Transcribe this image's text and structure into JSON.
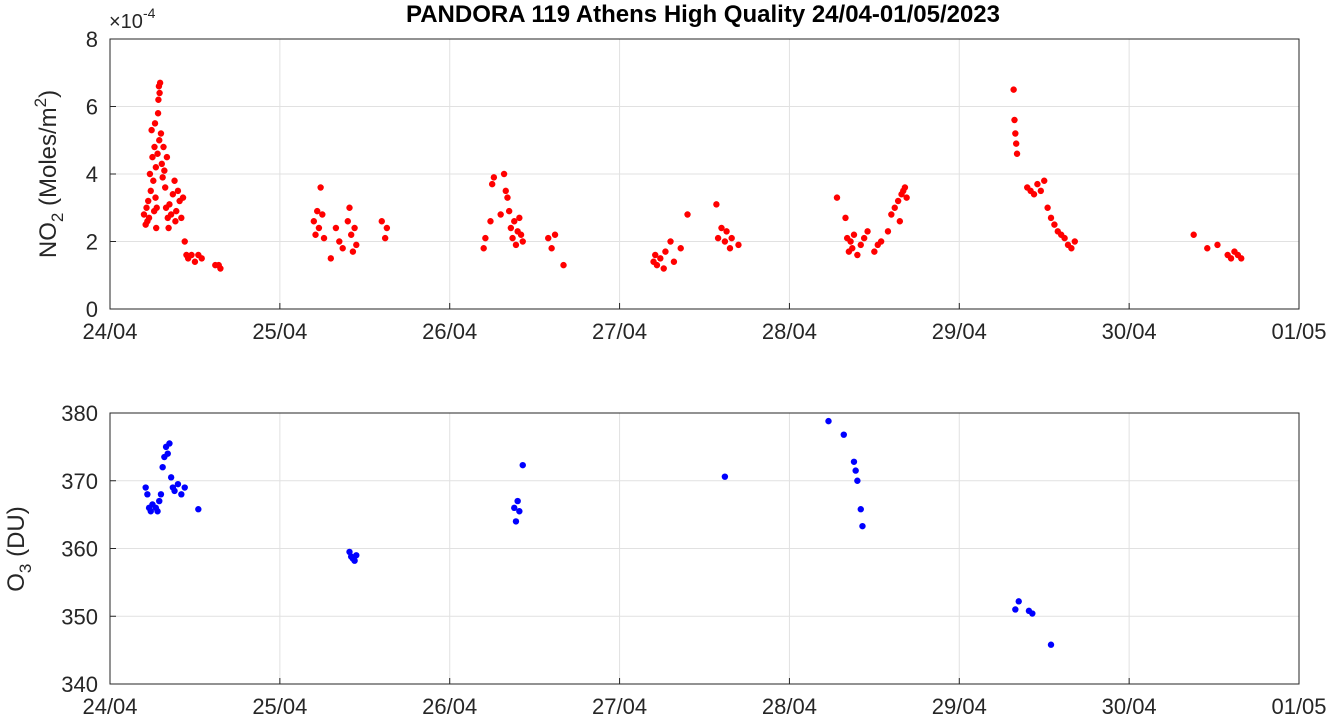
{
  "chart_data": [
    {
      "type": "scatter",
      "title": "PANDORA 119 Athens High Quality 24/04-01/05/2023",
      "ylabel": "NO2 (Moles/m2)",
      "ylabel_parts": {
        "main": "NO",
        "sub": "2",
        "rest": " (Moles/m",
        "sup": "2",
        "end": ")"
      },
      "y_exponent_label": "×10",
      "y_exponent_value": "-4",
      "x_unit": "days after 24/04",
      "xlim": [
        0,
        7
      ],
      "xticks": [
        "24/04",
        "25/04",
        "26/04",
        "27/04",
        "28/04",
        "29/04",
        "30/04",
        "01/05"
      ],
      "ylim": [
        0,
        8
      ],
      "yticks": [
        "0",
        "2",
        "4",
        "6",
        "8"
      ],
      "grid": true,
      "color": "#ff0000",
      "series": [
        {
          "points": [
            [
              0.2,
              2.8
            ],
            [
              0.21,
              2.5
            ],
            [
              0.215,
              3.0
            ],
            [
              0.22,
              2.6
            ],
            [
              0.225,
              3.2
            ],
            [
              0.23,
              2.7
            ],
            [
              0.235,
              4.0
            ],
            [
              0.24,
              3.5
            ],
            [
              0.245,
              5.3
            ],
            [
              0.25,
              4.5
            ],
            [
              0.255,
              3.8
            ],
            [
              0.26,
              2.9
            ],
            [
              0.262,
              4.8
            ],
            [
              0.265,
              5.5
            ],
            [
              0.268,
              3.3
            ],
            [
              0.27,
              4.2
            ],
            [
              0.272,
              2.4
            ],
            [
              0.275,
              3.0
            ],
            [
              0.28,
              4.6
            ],
            [
              0.283,
              5.8
            ],
            [
              0.285,
              6.2
            ],
            [
              0.288,
              6.6
            ],
            [
              0.29,
              5.0
            ],
            [
              0.292,
              6.4
            ],
            [
              0.295,
              6.7
            ],
            [
              0.3,
              5.2
            ],
            [
              0.305,
              4.3
            ],
            [
              0.31,
              3.9
            ],
            [
              0.315,
              4.8
            ],
            [
              0.32,
              4.1
            ],
            [
              0.325,
              3.6
            ],
            [
              0.33,
              3.0
            ],
            [
              0.335,
              4.5
            ],
            [
              0.34,
              2.7
            ],
            [
              0.345,
              2.4
            ],
            [
              0.35,
              3.1
            ],
            [
              0.36,
              2.8
            ],
            [
              0.37,
              3.4
            ],
            [
              0.38,
              3.8
            ],
            [
              0.385,
              2.6
            ],
            [
              0.39,
              2.9
            ],
            [
              0.4,
              3.5
            ],
            [
              0.41,
              3.2
            ],
            [
              0.42,
              2.7
            ],
            [
              0.43,
              3.3
            ],
            [
              0.44,
              2.0
            ],
            [
              0.45,
              1.6
            ],
            [
              0.46,
              1.5
            ],
            [
              0.48,
              1.6
            ],
            [
              0.5,
              1.4
            ],
            [
              0.52,
              1.6
            ],
            [
              0.54,
              1.5
            ],
            [
              0.62,
              1.3
            ],
            [
              0.64,
              1.3
            ],
            [
              0.65,
              1.2
            ]
          ]
        },
        {
          "points": [
            [
              1.2,
              2.6
            ],
            [
              1.21,
              2.2
            ],
            [
              1.22,
              2.9
            ],
            [
              1.23,
              2.4
            ],
            [
              1.24,
              3.6
            ],
            [
              1.25,
              2.8
            ],
            [
              1.26,
              2.1
            ],
            [
              1.3,
              1.5
            ],
            [
              1.33,
              2.4
            ],
            [
              1.35,
              2.0
            ],
            [
              1.37,
              1.8
            ],
            [
              1.4,
              2.6
            ],
            [
              1.41,
              3.0
            ],
            [
              1.42,
              2.2
            ],
            [
              1.43,
              1.7
            ],
            [
              1.44,
              2.4
            ],
            [
              1.45,
              1.9
            ],
            [
              1.6,
              2.6
            ],
            [
              1.62,
              2.1
            ],
            [
              1.63,
              2.4
            ]
          ]
        },
        {
          "points": [
            [
              2.2,
              1.8
            ],
            [
              2.21,
              2.1
            ],
            [
              2.24,
              2.6
            ],
            [
              2.25,
              3.7
            ],
            [
              2.26,
              3.9
            ],
            [
              2.3,
              2.8
            ],
            [
              2.32,
              4.0
            ],
            [
              2.33,
              3.5
            ],
            [
              2.34,
              3.3
            ],
            [
              2.35,
              2.9
            ],
            [
              2.36,
              2.4
            ],
            [
              2.37,
              2.1
            ],
            [
              2.38,
              2.6
            ],
            [
              2.39,
              1.9
            ],
            [
              2.4,
              2.3
            ],
            [
              2.41,
              2.7
            ],
            [
              2.42,
              2.2
            ],
            [
              2.43,
              2.0
            ],
            [
              2.58,
              2.1
            ],
            [
              2.6,
              1.8
            ],
            [
              2.62,
              2.2
            ],
            [
              2.67,
              1.3
            ]
          ]
        },
        {
          "points": [
            [
              3.2,
              1.4
            ],
            [
              3.21,
              1.6
            ],
            [
              3.22,
              1.3
            ],
            [
              3.24,
              1.5
            ],
            [
              3.26,
              1.2
            ],
            [
              3.27,
              1.7
            ],
            [
              3.3,
              2.0
            ],
            [
              3.32,
              1.4
            ],
            [
              3.36,
              1.8
            ],
            [
              3.4,
              2.8
            ],
            [
              3.57,
              3.1
            ],
            [
              3.58,
              2.1
            ],
            [
              3.6,
              2.4
            ],
            [
              3.62,
              2.0
            ],
            [
              3.63,
              2.3
            ],
            [
              3.65,
              1.8
            ],
            [
              3.66,
              2.1
            ],
            [
              3.7,
              1.9
            ]
          ]
        },
        {
          "points": [
            [
              4.28,
              3.3
            ],
            [
              4.33,
              2.7
            ],
            [
              4.34,
              2.1
            ],
            [
              4.35,
              1.7
            ],
            [
              4.36,
              2.0
            ],
            [
              4.37,
              1.8
            ],
            [
              4.38,
              2.2
            ],
            [
              4.4,
              1.6
            ],
            [
              4.42,
              1.9
            ],
            [
              4.44,
              2.1
            ],
            [
              4.46,
              2.3
            ],
            [
              4.5,
              1.7
            ],
            [
              4.52,
              1.9
            ],
            [
              4.54,
              2.0
            ],
            [
              4.58,
              2.3
            ],
            [
              4.6,
              2.8
            ],
            [
              4.62,
              3.0
            ],
            [
              4.64,
              3.2
            ],
            [
              4.65,
              2.6
            ],
            [
              4.66,
              3.4
            ],
            [
              4.67,
              3.5
            ],
            [
              4.68,
              3.6
            ],
            [
              4.69,
              3.3
            ]
          ]
        },
        {
          "points": [
            [
              5.32,
              6.5
            ],
            [
              5.325,
              5.6
            ],
            [
              5.33,
              5.2
            ],
            [
              5.335,
              4.9
            ],
            [
              5.34,
              4.6
            ],
            [
              5.4,
              3.6
            ],
            [
              5.42,
              3.5
            ],
            [
              5.44,
              3.4
            ],
            [
              5.46,
              3.7
            ],
            [
              5.48,
              3.5
            ],
            [
              5.5,
              3.8
            ],
            [
              5.52,
              3.0
            ],
            [
              5.54,
              2.7
            ],
            [
              5.56,
              2.5
            ],
            [
              5.58,
              2.3
            ],
            [
              5.6,
              2.2
            ],
            [
              5.62,
              2.1
            ],
            [
              5.64,
              1.9
            ],
            [
              5.66,
              1.8
            ],
            [
              5.68,
              2.0
            ]
          ]
        },
        {
          "points": [
            [
              6.38,
              2.2
            ],
            [
              6.46,
              1.8
            ],
            [
              6.52,
              1.9
            ],
            [
              6.58,
              1.6
            ],
            [
              6.6,
              1.5
            ],
            [
              6.62,
              1.7
            ],
            [
              6.64,
              1.6
            ],
            [
              6.66,
              1.5
            ]
          ]
        }
      ]
    },
    {
      "type": "scatter",
      "ylabel": "O3 (DU)",
      "ylabel_parts": {
        "main": "O",
        "sub": "3",
        "rest": " (DU)"
      },
      "x_unit": "days after 24/04",
      "xlim": [
        0,
        7
      ],
      "xticks": [
        "24/04",
        "25/04",
        "26/04",
        "27/04",
        "28/04",
        "29/04",
        "30/04",
        "01/05"
      ],
      "ylim": [
        340,
        380
      ],
      "yticks": [
        "340",
        "350",
        "360",
        "370",
        "380"
      ],
      "grid": true,
      "color": "#0000ff",
      "series": [
        {
          "points": [
            [
              0.21,
              369
            ],
            [
              0.22,
              368
            ],
            [
              0.23,
              366
            ],
            [
              0.24,
              365.5
            ],
            [
              0.25,
              366.5
            ],
            [
              0.27,
              366
            ],
            [
              0.28,
              365.5
            ],
            [
              0.29,
              367
            ],
            [
              0.3,
              368
            ],
            [
              0.31,
              372
            ],
            [
              0.32,
              373.5
            ],
            [
              0.33,
              375
            ],
            [
              0.34,
              374
            ],
            [
              0.35,
              375.5
            ],
            [
              0.36,
              370.5
            ],
            [
              0.37,
              369
            ],
            [
              0.38,
              368.5
            ],
            [
              0.4,
              369.5
            ],
            [
              0.42,
              368
            ],
            [
              0.44,
              369
            ],
            [
              0.52,
              365.8
            ],
            [
              1.41,
              359.5
            ],
            [
              1.42,
              358.8
            ],
            [
              1.43,
              358.5
            ],
            [
              1.44,
              358.2
            ],
            [
              1.45,
              359
            ],
            [
              2.38,
              366
            ],
            [
              2.39,
              364
            ],
            [
              2.4,
              367
            ],
            [
              2.41,
              365.5
            ],
            [
              2.43,
              372.3
            ],
            [
              3.62,
              370.6
            ],
            [
              4.23,
              378.8
            ],
            [
              4.32,
              376.8
            ],
            [
              4.38,
              372.8
            ],
            [
              4.39,
              371.5
            ],
            [
              4.4,
              370
            ],
            [
              4.42,
              365.8
            ],
            [
              4.43,
              363.3
            ],
            [
              5.33,
              351
            ],
            [
              5.35,
              352.2
            ],
            [
              5.41,
              350.8
            ],
            [
              5.43,
              350.4
            ],
            [
              5.54,
              345.8
            ]
          ]
        }
      ]
    }
  ]
}
